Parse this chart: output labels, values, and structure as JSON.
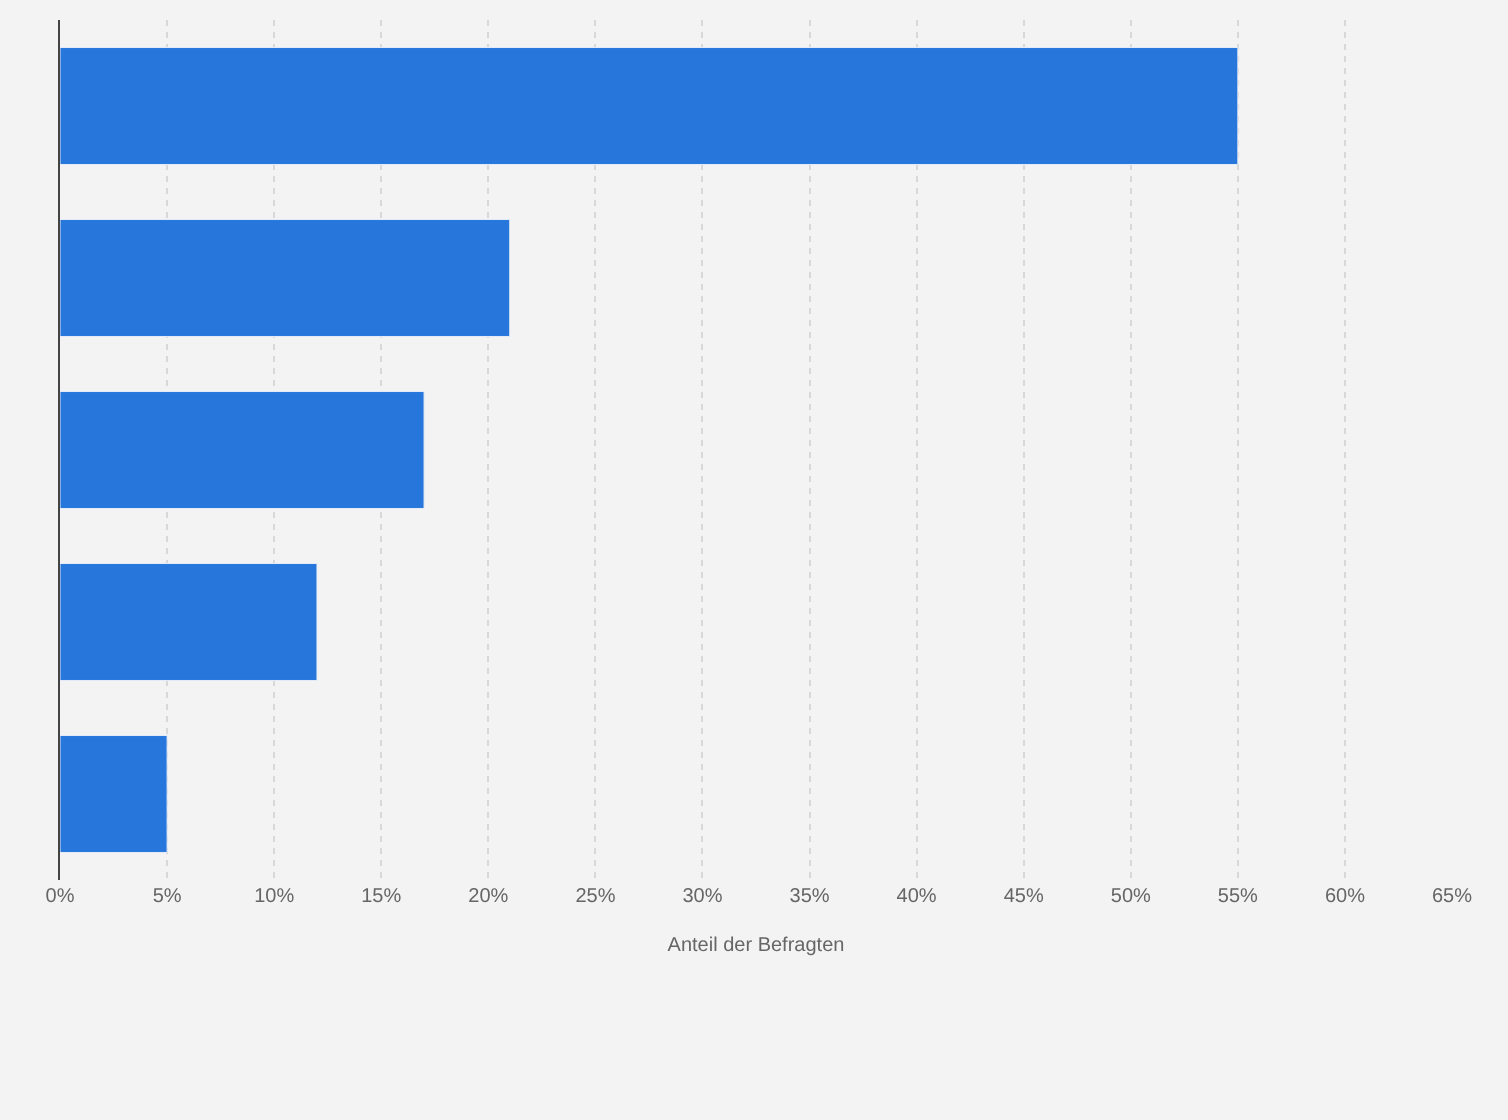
{
  "chart_data": {
    "type": "bar",
    "orientation": "horizontal",
    "xlabel": "Anteil der Befragten",
    "categories": [
      null,
      null,
      null,
      null,
      null
    ],
    "values": [
      55,
      21,
      17,
      12,
      5
    ],
    "color": "#2776dc",
    "xlim": [
      0,
      65
    ],
    "xticks": [
      {
        "value": 0,
        "label": "0%"
      },
      {
        "value": 5,
        "label": "5%"
      },
      {
        "value": 10,
        "label": "10%"
      },
      {
        "value": 15,
        "label": "15%"
      },
      {
        "value": 20,
        "label": "20%"
      },
      {
        "value": 25,
        "label": "25%"
      },
      {
        "value": 30,
        "label": "30%"
      },
      {
        "value": 35,
        "label": "35%"
      },
      {
        "value": 40,
        "label": "40%"
      },
      {
        "value": 45,
        "label": "45%"
      },
      {
        "value": 50,
        "label": "50%"
      },
      {
        "value": 55,
        "label": "55%"
      },
      {
        "value": 60,
        "label": "60%"
      },
      {
        "value": 65,
        "label": "65%"
      }
    ],
    "grid": "x",
    "legend": false
  }
}
